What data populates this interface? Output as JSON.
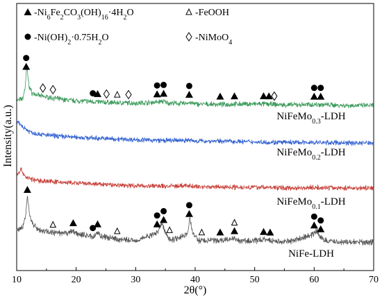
{
  "chart_data": {
    "type": "line",
    "xlabel": "2θ(°)",
    "ylabel": "Intensity(a.u.)",
    "xlim": [
      10,
      70
    ],
    "x_ticks": [
      10,
      20,
      30,
      40,
      50,
      60,
      70
    ],
    "grid": false,
    "legend_position": "top-left",
    "legend": [
      {
        "symbol": "filled-triangle",
        "label": "-Ni6Fe2CO3(OH)16·4H2O"
      },
      {
        "symbol": "open-triangle",
        "label": "-FeOOH"
      },
      {
        "symbol": "filled-circle",
        "label": "-Ni(OH)2·0.75H2O"
      },
      {
        "symbol": "open-diamond",
        "label": "-NiMoO4"
      }
    ],
    "series": [
      {
        "name": "NiFeMo0.3-LDH",
        "color": "#3a9a5a",
        "profile": [
          [
            10,
            0.1
          ],
          [
            11,
            0.14
          ],
          [
            11.4,
            0.36
          ],
          [
            11.7,
            0.8
          ],
          [
            12.1,
            0.4
          ],
          [
            12.6,
            0.26
          ],
          [
            14,
            0.2
          ],
          [
            16,
            0.16
          ],
          [
            18,
            0.12
          ],
          [
            20,
            0.1
          ],
          [
            23,
            0.08
          ],
          [
            26,
            0.06
          ],
          [
            30,
            0.05
          ],
          [
            33.6,
            0.07
          ],
          [
            34.5,
            0.09
          ],
          [
            35.5,
            0.05
          ],
          [
            38,
            0.04
          ],
          [
            39,
            0.06
          ],
          [
            40,
            0.03
          ],
          [
            45,
            0.02
          ],
          [
            47,
            0.03
          ],
          [
            52,
            0.03
          ],
          [
            55,
            0.01
          ],
          [
            60,
            0.02
          ],
          [
            61,
            0.02
          ],
          [
            65,
            0.0
          ],
          [
            70,
            0.0
          ]
        ],
        "markers": [
          {
            "x": 11.6,
            "symbols": [
              "filled-circle",
              "filled-triangle"
            ]
          },
          {
            "x": 14.4,
            "symbols": [
              "open-diamond"
            ]
          },
          {
            "x": 16.1,
            "symbols": [
              "open-diamond"
            ]
          },
          {
            "x": 22.8,
            "symbols": [
              "filled-circle"
            ]
          },
          {
            "x": 23.6,
            "symbols": [
              "filled-triangle"
            ]
          },
          {
            "x": 25.1,
            "symbols": [
              "open-diamond"
            ]
          },
          {
            "x": 26.9,
            "symbols": [
              "open-triangle"
            ]
          },
          {
            "x": 28.8,
            "symbols": [
              "open-diamond"
            ]
          },
          {
            "x": 33.6,
            "symbols": [
              "filled-circle",
              "filled-triangle"
            ]
          },
          {
            "x": 34.7,
            "symbols": [
              "filled-circle",
              "filled-triangle"
            ]
          },
          {
            "x": 39.0,
            "symbols": [
              "filled-circle",
              "filled-triangle"
            ]
          },
          {
            "x": 44.2,
            "symbols": [
              "filled-triangle"
            ]
          },
          {
            "x": 46.6,
            "symbols": [
              "filled-triangle"
            ]
          },
          {
            "x": 51.5,
            "symbols": [
              "filled-triangle"
            ]
          },
          {
            "x": 52.4,
            "symbols": [
              "filled-triangle"
            ]
          },
          {
            "x": 53.3,
            "symbols": [
              "open-diamond"
            ]
          },
          {
            "x": 60.0,
            "symbols": [
              "filled-circle",
              "filled-triangle"
            ]
          },
          {
            "x": 61.1,
            "symbols": [
              "filled-circle",
              "filled-triangle"
            ]
          }
        ]
      },
      {
        "name": "NiFeMo0.2-LDH",
        "color": "#2f5fd0",
        "profile": [
          [
            10,
            0.46
          ],
          [
            11,
            0.36
          ],
          [
            12,
            0.26
          ],
          [
            13,
            0.21
          ],
          [
            15,
            0.17
          ],
          [
            18,
            0.14
          ],
          [
            22,
            0.11
          ],
          [
            26,
            0.09
          ],
          [
            30,
            0.07
          ],
          [
            35,
            0.05
          ],
          [
            39,
            0.06
          ],
          [
            40,
            0.04
          ],
          [
            45,
            0.04
          ],
          [
            50,
            0.02
          ],
          [
            55,
            0.01
          ],
          [
            60,
            0.01
          ],
          [
            65,
            0.0
          ],
          [
            70,
            0.0
          ]
        ],
        "markers": []
      },
      {
        "name": "NiFeMo0.1-LDH",
        "color": "#c8413a",
        "profile": [
          [
            10,
            0.3
          ],
          [
            10.8,
            0.4
          ],
          [
            11.5,
            0.24
          ],
          [
            13,
            0.17
          ],
          [
            15,
            0.15
          ],
          [
            18,
            0.12
          ],
          [
            22,
            0.09
          ],
          [
            26,
            0.07
          ],
          [
            30,
            0.05
          ],
          [
            35,
            0.04
          ],
          [
            39,
            0.05
          ],
          [
            40,
            0.03
          ],
          [
            45,
            0.02
          ],
          [
            50,
            0.02
          ],
          [
            55,
            0.0
          ],
          [
            60,
            0.01
          ],
          [
            65,
            0.0
          ],
          [
            70,
            0.0
          ]
        ],
        "markers": []
      },
      {
        "name": "NiFe-LDH",
        "color": "#555555",
        "profile": [
          [
            10,
            0.22
          ],
          [
            11,
            0.26
          ],
          [
            11.5,
            0.48
          ],
          [
            11.8,
            0.8
          ],
          [
            12.2,
            0.5
          ],
          [
            12.8,
            0.3
          ],
          [
            14,
            0.21
          ],
          [
            16,
            0.17
          ],
          [
            18,
            0.15
          ],
          [
            19.5,
            0.2
          ],
          [
            20,
            0.15
          ],
          [
            23,
            0.1
          ],
          [
            23.6,
            0.18
          ],
          [
            24.3,
            0.1
          ],
          [
            27,
            0.05
          ],
          [
            30,
            0.03
          ],
          [
            33.5,
            0.16
          ],
          [
            34.4,
            0.34
          ],
          [
            35.2,
            0.12
          ],
          [
            36,
            0.04
          ],
          [
            38.7,
            0.14
          ],
          [
            39.1,
            0.44
          ],
          [
            39.6,
            0.16
          ],
          [
            40.5,
            0.03
          ],
          [
            44,
            0.03
          ],
          [
            46.5,
            0.06
          ],
          [
            47.5,
            0.02
          ],
          [
            50,
            0.02
          ],
          [
            52,
            0.05
          ],
          [
            53,
            0.02
          ],
          [
            56,
            0.01
          ],
          [
            59.8,
            0.14
          ],
          [
            60.4,
            0.2
          ],
          [
            61.1,
            0.09
          ],
          [
            62,
            0.02
          ],
          [
            65,
            0.0
          ],
          [
            70,
            0.0
          ]
        ],
        "markers": [
          {
            "x": 11.8,
            "symbols": [
              "filled-triangle"
            ]
          },
          {
            "x": 16.1,
            "symbols": [
              "open-triangle"
            ]
          },
          {
            "x": 19.5,
            "symbols": [
              "filled-triangle"
            ]
          },
          {
            "x": 22.8,
            "symbols": [
              "filled-circle"
            ]
          },
          {
            "x": 23.6,
            "symbols": [
              "filled-triangle"
            ]
          },
          {
            "x": 26.9,
            "symbols": [
              "open-triangle"
            ]
          },
          {
            "x": 33.6,
            "symbols": [
              "filled-circle",
              "filled-triangle"
            ]
          },
          {
            "x": 34.7,
            "symbols": [
              "filled-circle",
              "filled-triangle"
            ]
          },
          {
            "x": 35.7,
            "symbols": [
              "open-triangle"
            ]
          },
          {
            "x": 39.0,
            "symbols": [
              "filled-circle",
              "filled-triangle"
            ]
          },
          {
            "x": 41.1,
            "symbols": [
              "open-triangle"
            ]
          },
          {
            "x": 44.2,
            "symbols": [
              "filled-triangle"
            ]
          },
          {
            "x": 46.6,
            "symbols": [
              "open-triangle",
              "filled-triangle"
            ]
          },
          {
            "x": 51.5,
            "symbols": [
              "filled-triangle"
            ]
          },
          {
            "x": 52.6,
            "symbols": [
              "filled-triangle"
            ]
          },
          {
            "x": 60.0,
            "symbols": [
              "filled-circle",
              "filled-triangle"
            ]
          },
          {
            "x": 61.1,
            "symbols": [
              "filled-circle",
              "filled-triangle"
            ]
          }
        ]
      }
    ]
  }
}
